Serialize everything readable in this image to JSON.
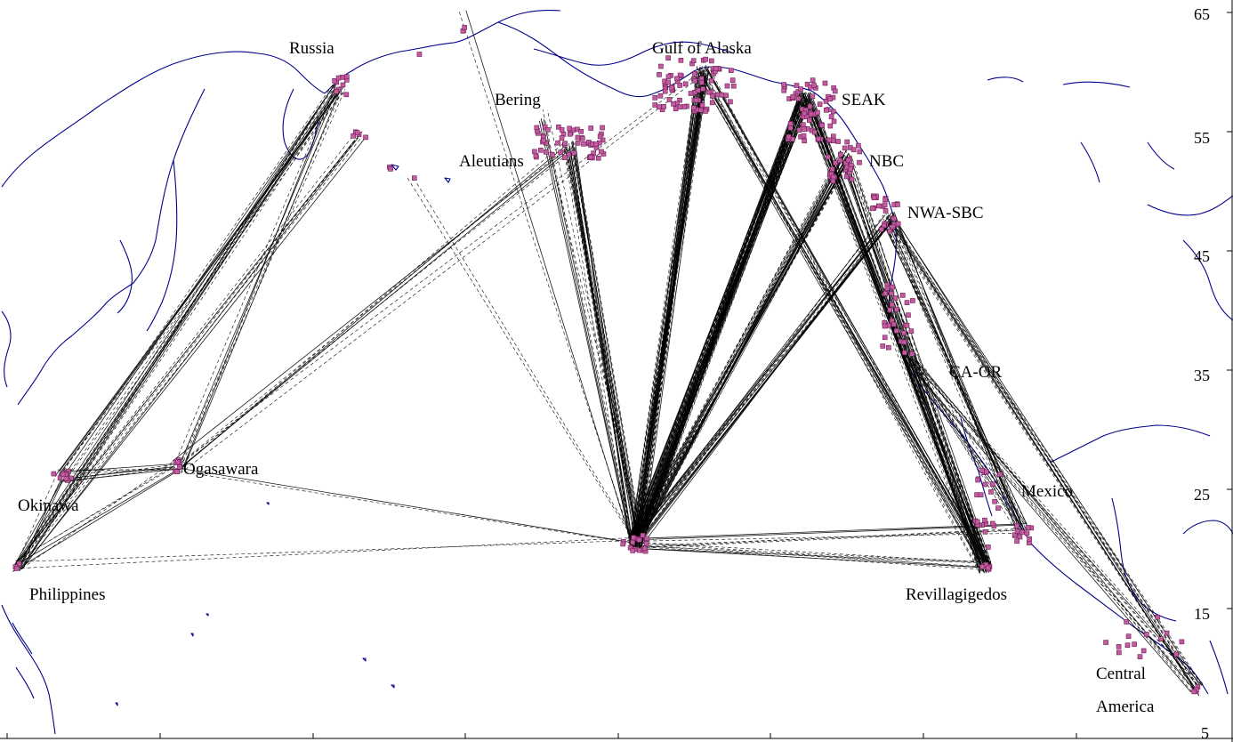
{
  "map": {
    "y_axis": {
      "ticks": [
        "65",
        "55",
        "45",
        "35",
        "25",
        "15",
        "5"
      ],
      "values": [
        65,
        55,
        45,
        35,
        25,
        15,
        5
      ]
    },
    "region_labels": [
      {
        "id": "russia",
        "text": "Russia"
      },
      {
        "id": "gulf-of-alaska",
        "text": "Gulf of Alaska"
      },
      {
        "id": "bering",
        "text": "Bering"
      },
      {
        "id": "seak",
        "text": "SEAK"
      },
      {
        "id": "aleutians",
        "text": "Aleutians"
      },
      {
        "id": "nbc",
        "text": "NBC"
      },
      {
        "id": "nwa-sbc",
        "text": "NWA-SBC"
      },
      {
        "id": "ca-or",
        "text": "CA-OR"
      },
      {
        "id": "ogasawara",
        "text": "Ogasawara"
      },
      {
        "id": "okinawa",
        "text": "Okinawa"
      },
      {
        "id": "mexico",
        "text": "Mexico"
      },
      {
        "id": "philippines",
        "text": "Philippines"
      },
      {
        "id": "revillagigedos",
        "text": "Revillagigedos"
      },
      {
        "id": "central-america-1",
        "text": "Central"
      },
      {
        "id": "central-america-2",
        "text": "America"
      }
    ],
    "colors": {
      "coastline": "#00008b",
      "sighting_marker": "#c45aa0",
      "track": "#000000"
    }
  }
}
